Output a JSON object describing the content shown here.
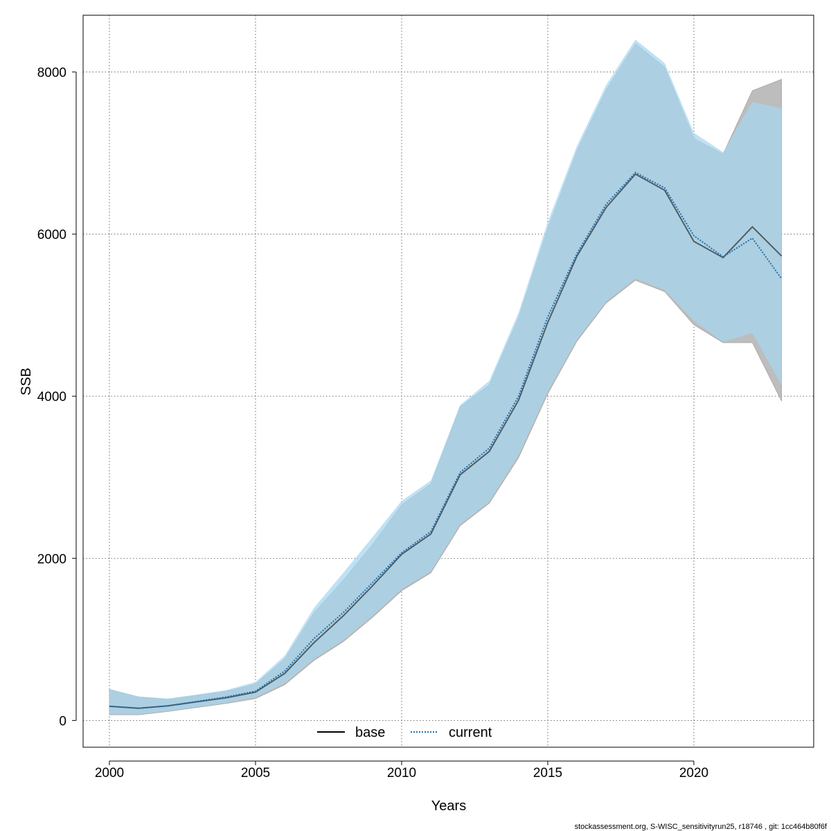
{
  "chart_data": {
    "type": "area",
    "xlabel": "Years",
    "ylabel": "SSB",
    "xlim": [
      1999.1,
      2024.1
    ],
    "ylim": [
      -330,
      8700
    ],
    "x_ticks": [
      2000,
      2005,
      2010,
      2015,
      2020
    ],
    "y_ticks": [
      0,
      2000,
      4000,
      6000,
      8000
    ],
    "grid": true,
    "legend_placement": "bottom-center",
    "x": [
      2000,
      2001,
      2002,
      2003,
      2004,
      2005,
      2006,
      2007,
      2008,
      2009,
      2010,
      2011,
      2012,
      2013,
      2014,
      2015,
      2016,
      2017,
      2018,
      2019,
      2020,
      2021,
      2022,
      2023
    ],
    "series": [
      {
        "name": "base",
        "color": "#000000",
        "band_color": "#bdbdbd",
        "line_style": "solid",
        "values": [
          175,
          150,
          180,
          230,
          280,
          350,
          580,
          960,
          1290,
          1660,
          2050,
          2300,
          3030,
          3320,
          3950,
          4910,
          5730,
          6330,
          6740,
          6540,
          5910,
          5710,
          6090,
          5730
        ],
        "upper": [
          380,
          290,
          260,
          310,
          360,
          450,
          760,
          1330,
          1730,
          2170,
          2660,
          2920,
          3870,
          4140,
          4970,
          6070,
          7030,
          7780,
          8350,
          8060,
          7180,
          6990,
          7770,
          7910
        ],
        "lower": [
          70,
          70,
          110,
          160,
          210,
          270,
          440,
          740,
          970,
          1270,
          1600,
          1820,
          2400,
          2680,
          3240,
          4030,
          4680,
          5150,
          5430,
          5290,
          4880,
          4660,
          4660,
          3940
        ]
      },
      {
        "name": "current",
        "color": "#1f6ea8",
        "band_color": "#a6d6f0",
        "line_style": "dotted",
        "values": [
          175,
          150,
          180,
          235,
          290,
          360,
          610,
          1010,
          1330,
          1700,
          2070,
          2330,
          3060,
          3360,
          4000,
          4980,
          5760,
          6370,
          6760,
          6570,
          5980,
          5720,
          5950,
          5450
        ],
        "upper": [
          390,
          295,
          270,
          320,
          375,
          475,
          800,
          1390,
          1820,
          2260,
          2710,
          2960,
          3890,
          4190,
          5030,
          6150,
          7090,
          7840,
          8400,
          8110,
          7250,
          7010,
          7630,
          7550
        ],
        "lower": [
          75,
          75,
          115,
          165,
          215,
          285,
          460,
          760,
          990,
          1290,
          1620,
          1840,
          2420,
          2700,
          3270,
          4060,
          4700,
          5170,
          5450,
          5310,
          4930,
          4670,
          4780,
          4140
        ]
      }
    ]
  },
  "footer": "stockassessment.org, S-WISC_sensitivityrun25, r18746 , git: 1cc464b80f6f"
}
